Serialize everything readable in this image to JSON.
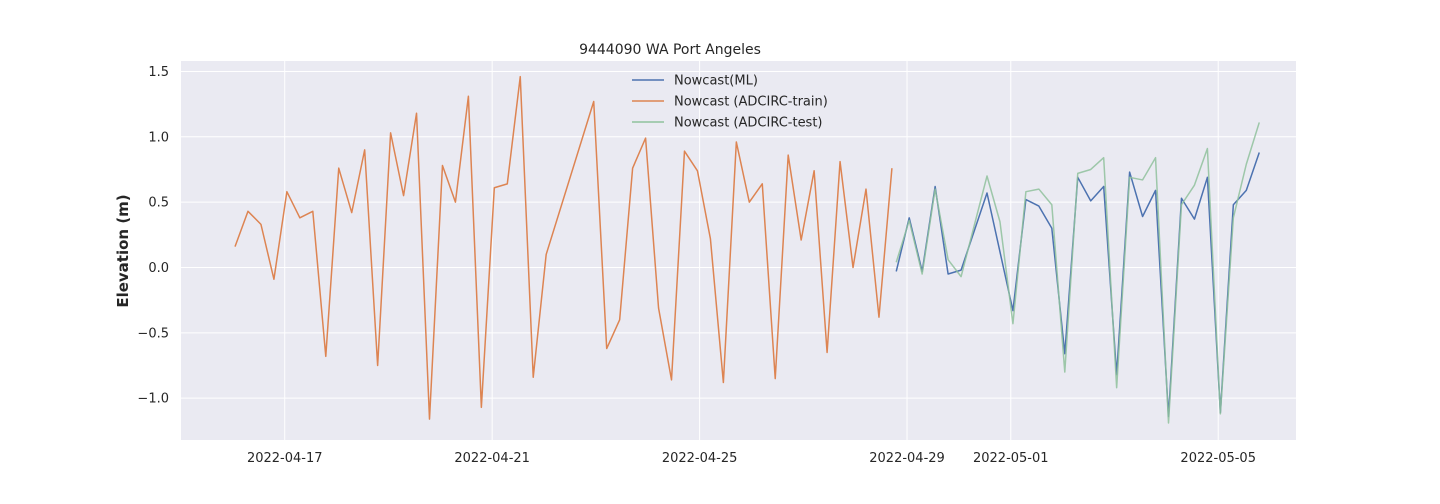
{
  "chart_data": {
    "type": "line",
    "title": "9444090 WA Port Angeles",
    "xlabel": "",
    "ylabel": "Elevation (m)",
    "xlim": [
      "2022-04-15T00:00",
      "2022-05-06T12:00"
    ],
    "ylim": [
      -1.32,
      1.58
    ],
    "x_ticks": [
      "2022-04-17",
      "2022-04-21",
      "2022-04-25",
      "2022-04-29",
      "2022-05-01",
      "2022-05-05"
    ],
    "y_ticks": [
      1.5,
      1.0,
      0.5,
      0.0,
      -0.5,
      -1.0
    ],
    "y_tick_labels": [
      "1.5",
      "1.0",
      "0.5",
      "0.0",
      "−0.5",
      "−1.0"
    ],
    "grid": true,
    "legend_position": "top-center",
    "background": "#eaeaf2",
    "series": [
      {
        "name": "Nowcast(ML)",
        "color": "#4c72b0",
        "points": [
          [
            "2022-04-28T19:00",
            -0.03
          ],
          [
            "2022-04-29T01:00",
            0.38
          ],
          [
            "2022-04-29T07:00",
            -0.03
          ],
          [
            "2022-04-29T13:00",
            0.62
          ],
          [
            "2022-04-29T19:00",
            -0.05
          ],
          [
            "2022-04-30T01:00",
            -0.02
          ],
          [
            "2022-04-30T13:00",
            0.57
          ],
          [
            "2022-05-01T01:00",
            -0.33
          ],
          [
            "2022-05-01T07:00",
            0.52
          ],
          [
            "2022-05-01T13:00",
            0.47
          ],
          [
            "2022-05-01T19:00",
            0.3
          ],
          [
            "2022-05-02T01:00",
            -0.66
          ],
          [
            "2022-05-02T07:00",
            0.69
          ],
          [
            "2022-05-02T13:00",
            0.51
          ],
          [
            "2022-05-02T19:00",
            0.62
          ],
          [
            "2022-05-03T01:00",
            -0.82
          ],
          [
            "2022-05-03T07:00",
            0.73
          ],
          [
            "2022-05-03T13:00",
            0.39
          ],
          [
            "2022-05-03T19:00",
            0.59
          ],
          [
            "2022-05-04T01:00",
            -1.14
          ],
          [
            "2022-05-04T07:00",
            0.53
          ],
          [
            "2022-05-04T13:00",
            0.37
          ],
          [
            "2022-05-04T19:00",
            0.69
          ],
          [
            "2022-05-05T01:00",
            -1.11
          ],
          [
            "2022-05-05T07:00",
            0.48
          ],
          [
            "2022-05-05T13:00",
            0.59
          ],
          [
            "2022-05-05T19:00",
            0.88
          ]
        ]
      },
      {
        "name": "Nowcast (ADCIRC-train)",
        "color": "#dd8452",
        "points": [
          [
            "2022-04-16T01:00",
            0.16
          ],
          [
            "2022-04-16T07:00",
            0.43
          ],
          [
            "2022-04-16T13:00",
            0.33
          ],
          [
            "2022-04-16T19:00",
            -0.09
          ],
          [
            "2022-04-17T01:00",
            0.58
          ],
          [
            "2022-04-17T07:00",
            0.38
          ],
          [
            "2022-04-17T13:00",
            0.43
          ],
          [
            "2022-04-17T19:00",
            -0.68
          ],
          [
            "2022-04-18T01:00",
            0.76
          ],
          [
            "2022-04-18T07:00",
            0.42
          ],
          [
            "2022-04-18T13:00",
            0.9
          ],
          [
            "2022-04-18T19:00",
            -0.75
          ],
          [
            "2022-04-19T01:00",
            1.03
          ],
          [
            "2022-04-19T07:00",
            0.55
          ],
          [
            "2022-04-19T13:00",
            1.18
          ],
          [
            "2022-04-19T19:00",
            -1.16
          ],
          [
            "2022-04-20T01:00",
            0.78
          ],
          [
            "2022-04-20T07:00",
            0.5
          ],
          [
            "2022-04-20T13:00",
            1.31
          ],
          [
            "2022-04-20T19:00",
            -1.07
          ],
          [
            "2022-04-21T01:00",
            0.61
          ],
          [
            "2022-04-21T07:00",
            0.64
          ],
          [
            "2022-04-21T13:00",
            1.46
          ],
          [
            "2022-04-21T19:00",
            -0.84
          ],
          [
            "2022-04-22T01:00",
            0.1
          ],
          [
            "2022-04-22T23:00",
            1.27
          ],
          [
            "2022-04-23T05:00",
            -0.62
          ],
          [
            "2022-04-23T11:00",
            -0.4
          ],
          [
            "2022-04-23T17:00",
            0.76
          ],
          [
            "2022-04-23T23:00",
            0.99
          ],
          [
            "2022-04-24T05:00",
            -0.31
          ],
          [
            "2022-04-24T11:00",
            -0.86
          ],
          [
            "2022-04-24T17:00",
            0.89
          ],
          [
            "2022-04-24T23:00",
            0.74
          ],
          [
            "2022-04-25T05:00",
            0.22
          ],
          [
            "2022-04-25T11:00",
            -0.88
          ],
          [
            "2022-04-25T17:00",
            0.96
          ],
          [
            "2022-04-25T23:00",
            0.5
          ],
          [
            "2022-04-26T05:00",
            0.64
          ],
          [
            "2022-04-26T11:00",
            -0.85
          ],
          [
            "2022-04-26T17:00",
            0.86
          ],
          [
            "2022-04-26T23:00",
            0.21
          ],
          [
            "2022-04-27T05:00",
            0.74
          ],
          [
            "2022-04-27T11:00",
            -0.65
          ],
          [
            "2022-04-27T17:00",
            0.81
          ],
          [
            "2022-04-27T23:00",
            0.0
          ],
          [
            "2022-04-28T05:00",
            0.6
          ],
          [
            "2022-04-28T11:00",
            -0.38
          ],
          [
            "2022-04-28T17:00",
            0.76
          ]
        ]
      },
      {
        "name": "Nowcast (ADCIRC-test)",
        "color": "#8fc19c",
        "points": [
          [
            "2022-04-28T19:00",
            0.04
          ],
          [
            "2022-04-29T01:00",
            0.36
          ],
          [
            "2022-04-29T07:00",
            -0.05
          ],
          [
            "2022-04-29T13:00",
            0.6
          ],
          [
            "2022-04-29T19:00",
            0.06
          ],
          [
            "2022-04-30T01:00",
            -0.07
          ],
          [
            "2022-04-30T13:00",
            0.7
          ],
          [
            "2022-04-30T19:00",
            0.35
          ],
          [
            "2022-05-01T01:00",
            -0.43
          ],
          [
            "2022-05-01T07:00",
            0.58
          ],
          [
            "2022-05-01T13:00",
            0.6
          ],
          [
            "2022-05-01T19:00",
            0.48
          ],
          [
            "2022-05-02T01:00",
            -0.8
          ],
          [
            "2022-05-02T07:00",
            0.72
          ],
          [
            "2022-05-02T13:00",
            0.75
          ],
          [
            "2022-05-02T19:00",
            0.84
          ],
          [
            "2022-05-03T01:00",
            -0.92
          ],
          [
            "2022-05-03T07:00",
            0.69
          ],
          [
            "2022-05-03T13:00",
            0.67
          ],
          [
            "2022-05-03T19:00",
            0.84
          ],
          [
            "2022-05-04T01:00",
            -1.19
          ],
          [
            "2022-05-04T07:00",
            0.48
          ],
          [
            "2022-05-04T13:00",
            0.63
          ],
          [
            "2022-05-04T19:00",
            0.91
          ],
          [
            "2022-05-05T01:00",
            -1.12
          ],
          [
            "2022-05-05T07:00",
            0.38
          ],
          [
            "2022-05-05T13:00",
            0.79
          ],
          [
            "2022-05-05T19:00",
            1.11
          ]
        ]
      }
    ]
  }
}
